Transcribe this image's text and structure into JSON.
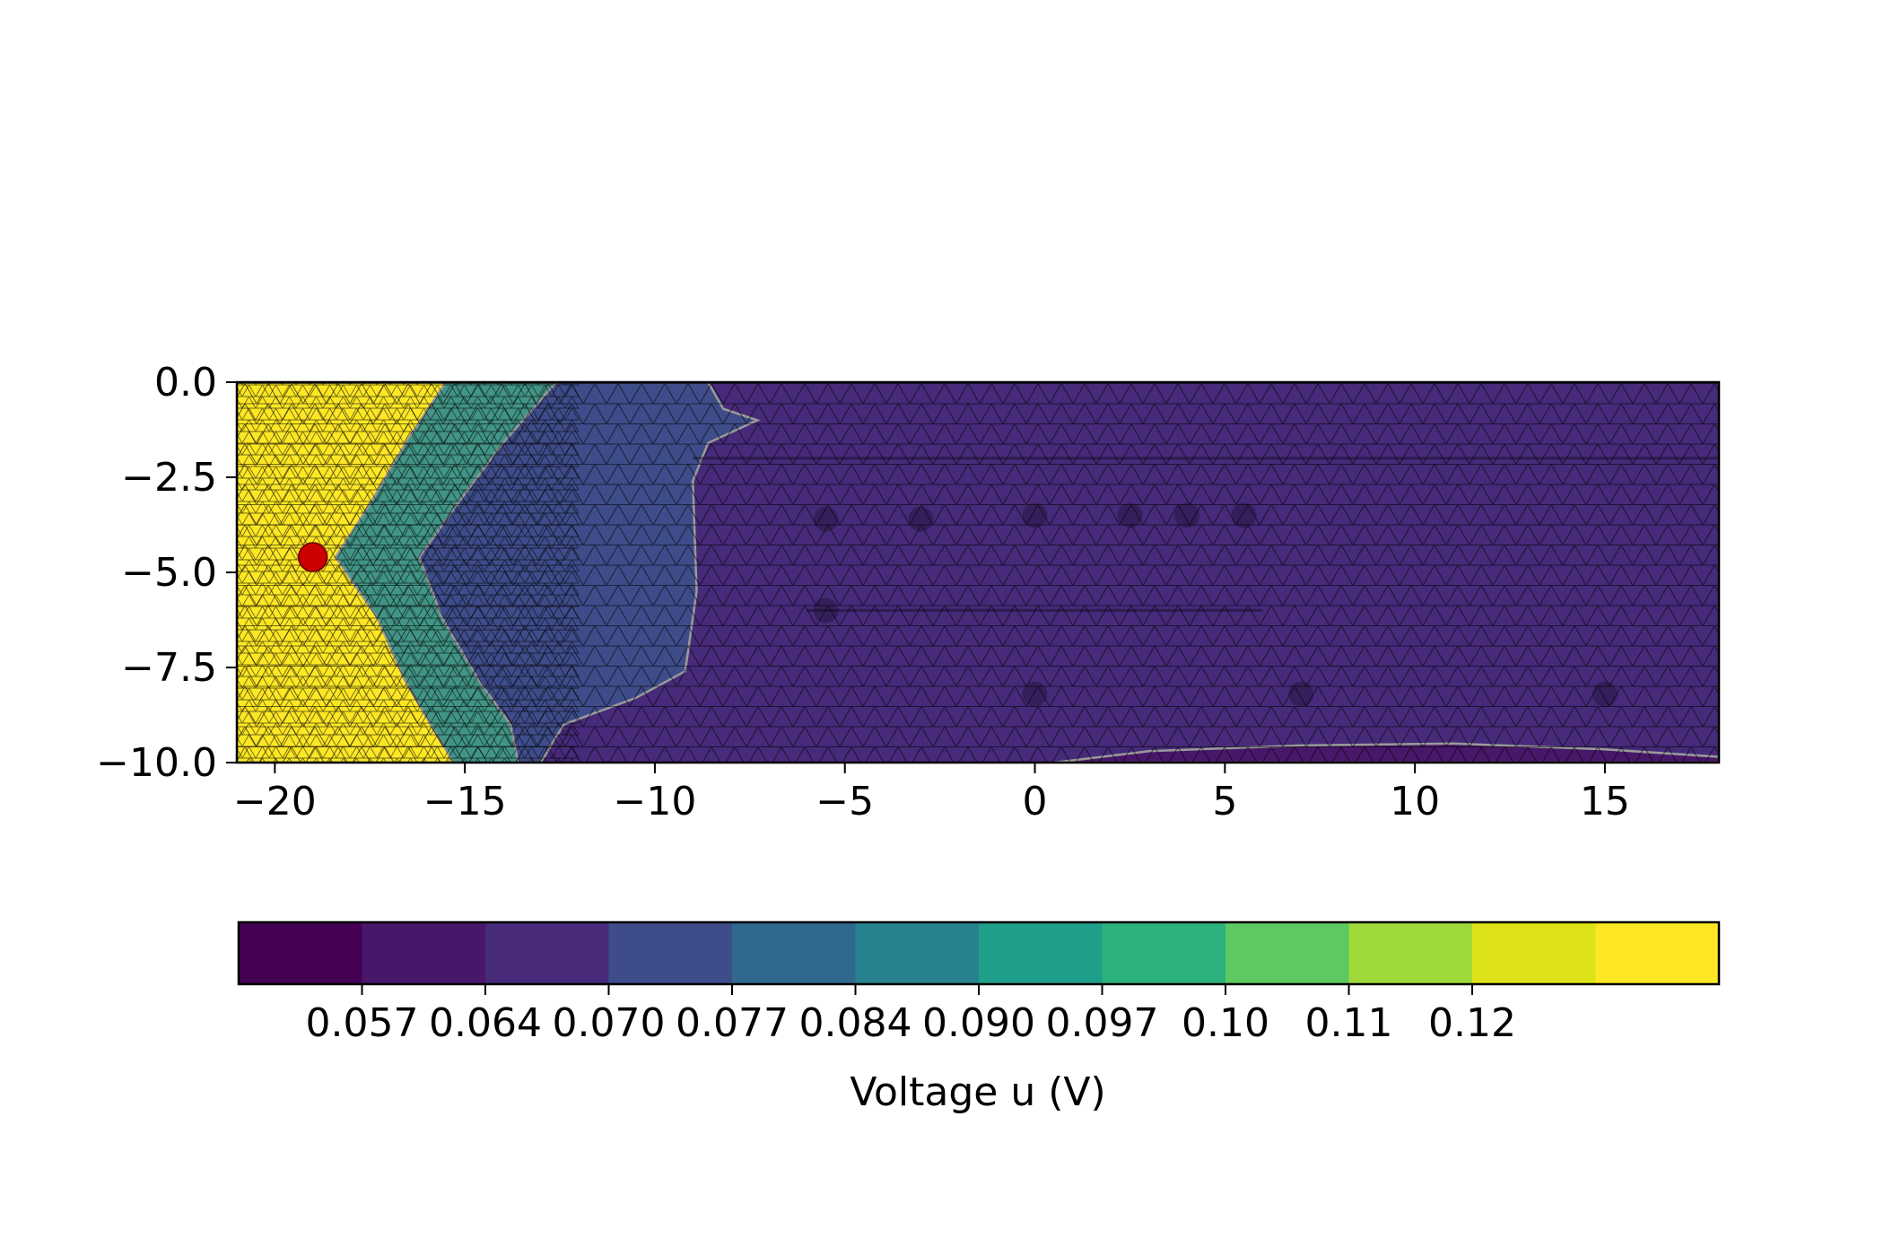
{
  "chart_data": {
    "type": "heatmap",
    "subtype": "filled-contour-on-triangular-mesh",
    "title": "",
    "xlabel": "",
    "ylabel": "",
    "xlim": [
      -21,
      18
    ],
    "ylim": [
      -10,
      0
    ],
    "x_ticks": [
      -20,
      -15,
      -10,
      -5,
      0,
      5,
      10,
      15
    ],
    "x_tick_labels": [
      "−20",
      "−15",
      "−10",
      "−5",
      "0",
      "5",
      "10",
      "15"
    ],
    "y_ticks": [
      0,
      -2.5,
      -5,
      -7.5,
      -10
    ],
    "y_tick_labels": [
      "0.0",
      "−2.5",
      "−5.0",
      "−7.5",
      "−10.0"
    ],
    "mesh": true,
    "mesh_color": "#000000",
    "electrode": {
      "x": -19,
      "y": -4.6,
      "color": "#cc0000"
    },
    "regions": [
      {
        "name": "yellow-near-electrode",
        "level": 0.125,
        "polygon": [
          [
            -21,
            0
          ],
          [
            -15.5,
            0
          ],
          [
            -16.5,
            -1.5
          ],
          [
            -17.5,
            -3.2
          ],
          [
            -18.4,
            -4.6
          ],
          [
            -17.3,
            -6.2
          ],
          [
            -16.6,
            -7.8
          ],
          [
            -15.9,
            -9
          ],
          [
            -15.3,
            -10
          ],
          [
            -21,
            -10
          ]
        ]
      },
      {
        "name": "transition-band",
        "level": 0.095,
        "polygon": [
          [
            -15.5,
            0
          ],
          [
            -12.6,
            0
          ],
          [
            -14.0,
            -1.6
          ],
          [
            -15.2,
            -3.2
          ],
          [
            -16.2,
            -4.6
          ],
          [
            -15.6,
            -6.2
          ],
          [
            -14.6,
            -7.9
          ],
          [
            -13.8,
            -9
          ],
          [
            -13.6,
            -10
          ],
          [
            -15.3,
            -10
          ],
          [
            -15.9,
            -9
          ],
          [
            -16.6,
            -7.8
          ],
          [
            -17.3,
            -6.2
          ],
          [
            -18.4,
            -4.6
          ],
          [
            -17.5,
            -3.2
          ],
          [
            -16.5,
            -1.5
          ]
        ]
      },
      {
        "name": "blue-middle",
        "level": 0.073,
        "polygon": [
          [
            -12.6,
            0
          ],
          [
            -8.6,
            0
          ],
          [
            -8.2,
            -0.7
          ],
          [
            -7.3,
            -1.0
          ],
          [
            -8.6,
            -1.6
          ],
          [
            -9.0,
            -2.6
          ],
          [
            -8.9,
            -5.5
          ],
          [
            -9.2,
            -7.6
          ],
          [
            -10.5,
            -8.3
          ],
          [
            -12.4,
            -9.0
          ],
          [
            -13.0,
            -10
          ],
          [
            -13.6,
            -10
          ],
          [
            -13.8,
            -9
          ],
          [
            -14.6,
            -7.9
          ],
          [
            -15.6,
            -6.2
          ],
          [
            -16.2,
            -4.6
          ],
          [
            -15.2,
            -3.2
          ],
          [
            -14.0,
            -1.6
          ]
        ]
      },
      {
        "name": "purple-background",
        "level": 0.066,
        "polygon": [
          [
            -21,
            0
          ],
          [
            18,
            0
          ],
          [
            18,
            -10
          ],
          [
            -21,
            -10
          ]
        ]
      },
      {
        "name": "dark-bottom-right",
        "level": 0.06,
        "polygon": [
          [
            0.5,
            -10
          ],
          [
            3,
            -9.7
          ],
          [
            7,
            -9.55
          ],
          [
            11,
            -9.5
          ],
          [
            15,
            -9.65
          ],
          [
            18,
            -9.85
          ],
          [
            18,
            -10
          ]
        ]
      }
    ],
    "colorbar": {
      "label": "Voltage u (V)",
      "orientation": "horizontal",
      "colors": [
        "#440154",
        "#481769",
        "#472a7a",
        "#3e4c8a",
        "#31688e",
        "#26828e",
        "#1f9e89",
        "#2db27d",
        "#5ec962",
        "#9fda3a",
        "#dde318",
        "#fde725"
      ],
      "tick_labels": [
        "0.057",
        "0.064",
        "0.070",
        "0.077",
        "0.084",
        "0.090",
        "0.097",
        "0.10",
        "0.11",
        "0.12"
      ]
    }
  }
}
